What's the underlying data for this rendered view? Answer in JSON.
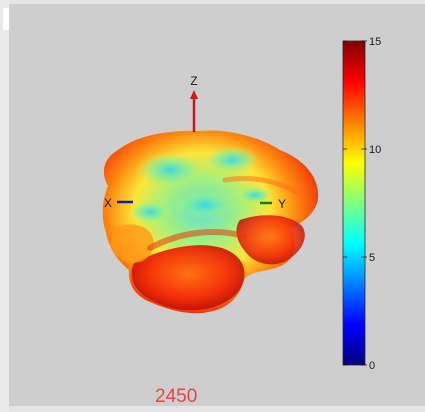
{
  "frame_label": "2450",
  "chart_data": {
    "type": "heatmap",
    "subtype": "3d-surface",
    "title": "",
    "axes": {
      "x_label": "X",
      "y_label": "Y",
      "z_label": "Z"
    },
    "axis_colors": {
      "x": "#1a1aa8",
      "y": "#1a7a1a",
      "z": "#d01818"
    },
    "colorbar": {
      "colormap": "jet",
      "min": 0,
      "max": 15,
      "ticks": [
        {
          "value": 0,
          "label": "0"
        },
        {
          "value": 5,
          "label": "5"
        },
        {
          "value": 10,
          "label": "10"
        },
        {
          "value": 15,
          "label": "15"
        }
      ],
      "placement": "right"
    },
    "grid": false,
    "background": "#cecece"
  }
}
